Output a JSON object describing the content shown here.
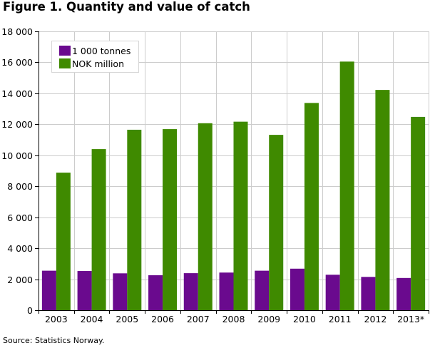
{
  "title": "Figure 1. Quantity and value of catch",
  "source": "Source: Statistics Norway.",
  "colors": {
    "tonnes": "#6a0a8e",
    "nok": "#3f8a00",
    "grid": "#cccccc",
    "axis": "#000000"
  },
  "chart_data": {
    "type": "bar",
    "title": "Figure 1. Quantity and value of catch",
    "xlabel": "",
    "ylabel": "",
    "categories": [
      "2003",
      "2004",
      "2005",
      "2006",
      "2007",
      "2008",
      "2009",
      "2010",
      "2011",
      "2012",
      "2013*"
    ],
    "series": [
      {
        "name": "1 000 tonnes",
        "values": [
          2550,
          2530,
          2380,
          2260,
          2390,
          2430,
          2550,
          2680,
          2290,
          2150,
          2080
        ]
      },
      {
        "name": "NOK million",
        "values": [
          8880,
          10400,
          11650,
          11690,
          12070,
          12170,
          11320,
          13380,
          16050,
          14220,
          12480
        ]
      }
    ],
    "ylim": [
      0,
      18000
    ],
    "yticks": [
      0,
      2000,
      4000,
      6000,
      8000,
      10000,
      12000,
      14000,
      16000,
      18000
    ],
    "ytick_labels": [
      "0",
      "2 000",
      "4 000",
      "6 000",
      "8 000",
      "10 000",
      "12 000",
      "14 000",
      "16 000",
      "18 000"
    ],
    "grid": true,
    "legend_position": "top-left"
  }
}
